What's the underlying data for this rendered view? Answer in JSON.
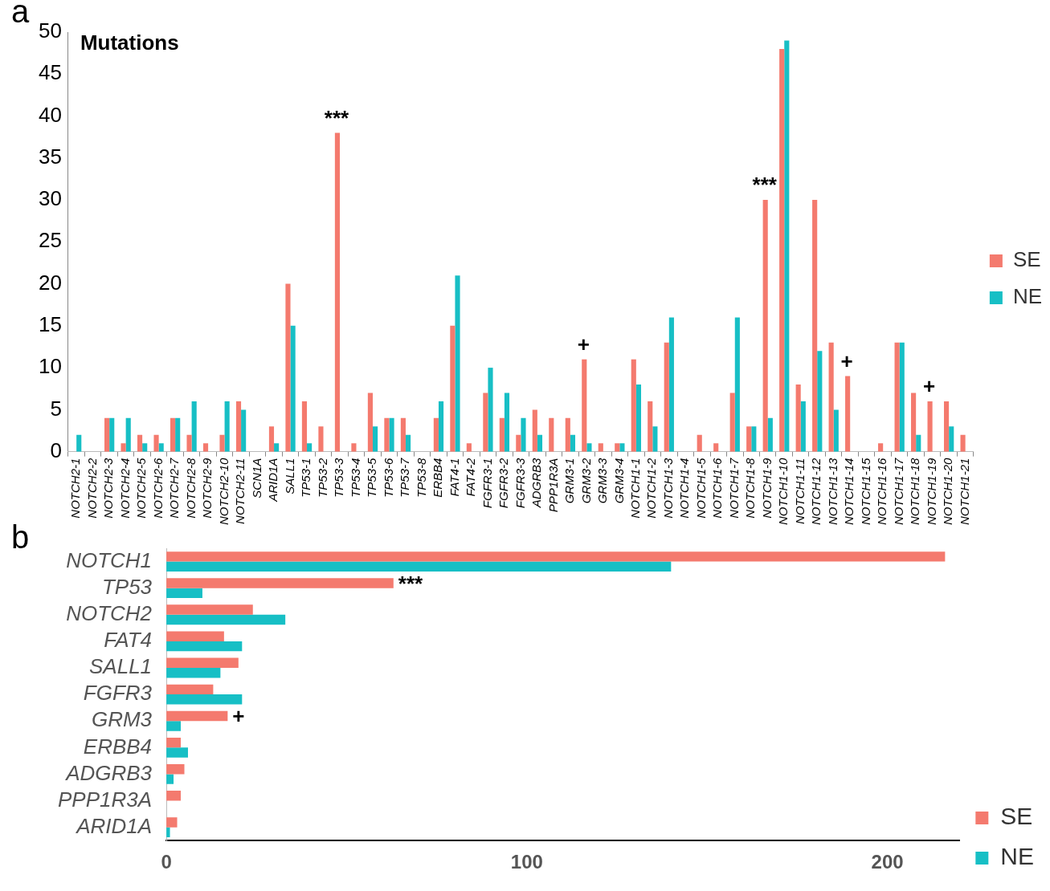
{
  "chart_data": [
    {
      "type": "bar",
      "title": "Mutations",
      "annotations": [
        "a",
        {
          "text": "***",
          "x": "TP53-3",
          "y": 38
        },
        {
          "text": "***",
          "x": "NOTCH1-9",
          "y": 30
        },
        {
          "text": "+",
          "x": "GRM3-2",
          "y": 11
        },
        {
          "text": "+",
          "x": "NOTCH1-14",
          "y": 9
        },
        {
          "text": "+",
          "x": "NOTCH1-19",
          "y": 6
        }
      ],
      "categories": [
        "NOTCH2-1",
        "NOTCH2-2",
        "NOTCH2-3",
        "NOTCH2-4",
        "NOTCH2-5",
        "NOTCH2-6",
        "NOTCH2-7",
        "NOTCH2-8",
        "NOTCH2-9",
        "NOTCH2-10",
        "NOTCH2-11",
        "SCN1A",
        "ARID1A",
        "SALL1",
        "TP53-1",
        "TP53-2",
        "TP53-3",
        "TP53-4",
        "TP53-5",
        "TP53-6",
        "TP53-7",
        "TP53-8",
        "ERBB4",
        "FAT4-1",
        "FAT4-2",
        "FGFR3-1",
        "FGFR3-2",
        "FGFR3-3",
        "ADGRB3",
        "PPP1R3A",
        "GRM3-1",
        "GRM3-2",
        "GRM3-3",
        "GRM3-4",
        "NOTCH1-1",
        "NOTCH1-2",
        "NOTCH1-3",
        "NOTCH1-4",
        "NOTCH1-5",
        "NOTCH1-6",
        "NOTCH1-7",
        "NOTCH1-8",
        "NOTCH1-9",
        "NOTCH1-10",
        "NOTCH1-11",
        "NOTCH1-12",
        "NOTCH1-13",
        "NOTCH1-14",
        "NOTCH1-15",
        "NOTCH1-16",
        "NOTCH1-17",
        "NOTCH1-18",
        "NOTCH1-19",
        "NOTCH1-20",
        "NOTCH1-21"
      ],
      "series": [
        {
          "name": "SE",
          "color": "#f47a6e",
          "values": [
            0,
            0,
            4,
            1,
            2,
            2,
            4,
            2,
            1,
            2,
            6,
            0,
            3,
            20,
            6,
            3,
            38,
            1,
            7,
            4,
            4,
            0,
            4,
            15,
            1,
            7,
            4,
            2,
            5,
            4,
            4,
            11,
            1,
            1,
            11,
            6,
            13,
            0,
            2,
            1,
            7,
            3,
            30,
            48,
            8,
            30,
            13,
            9,
            0,
            1,
            13,
            7,
            6,
            6,
            2
          ]
        },
        {
          "name": "NE",
          "color": "#17bfc5",
          "values": [
            2,
            0,
            4,
            4,
            1,
            1,
            4,
            6,
            0,
            6,
            5,
            0,
            1,
            15,
            1,
            0,
            0,
            0,
            3,
            4,
            2,
            0,
            6,
            21,
            0,
            10,
            7,
            4,
            2,
            0,
            2,
            1,
            0,
            1,
            8,
            3,
            16,
            0,
            0,
            0,
            16,
            3,
            4,
            49,
            6,
            12,
            5,
            0,
            0,
            0,
            13,
            2,
            0,
            3,
            0
          ]
        }
      ],
      "ylim": [
        0,
        50
      ],
      "yticks": [
        0,
        5,
        10,
        15,
        20,
        25,
        30,
        35,
        40,
        45,
        50
      ],
      "grid": false,
      "legend": "right"
    },
    {
      "type": "bar",
      "orientation": "horizontal",
      "annotations": [
        "b",
        {
          "text": "***",
          "x": 63,
          "y": "TP53"
        },
        {
          "text": "+",
          "x": 17,
          "y": "GRM3"
        }
      ],
      "categories": [
        "NOTCH1",
        "TP53",
        "NOTCH2",
        "FAT4",
        "SALL1",
        "FGFR3",
        "GRM3",
        "ERBB4",
        "ADGRB3",
        "PPP1R3A",
        "ARID1A"
      ],
      "series": [
        {
          "name": "SE",
          "color": "#f47a6e",
          "values": [
            216,
            63,
            24,
            16,
            20,
            13,
            17,
            4,
            5,
            4,
            3
          ]
        },
        {
          "name": "NE",
          "color": "#17bfc5",
          "values": [
            140,
            10,
            33,
            21,
            15,
            21,
            4,
            6,
            2,
            0,
            1
          ]
        }
      ],
      "xlim": [
        0,
        220
      ],
      "xticks": [
        0,
        100,
        200
      ],
      "grid": false,
      "legend": "bottom right"
    }
  ]
}
